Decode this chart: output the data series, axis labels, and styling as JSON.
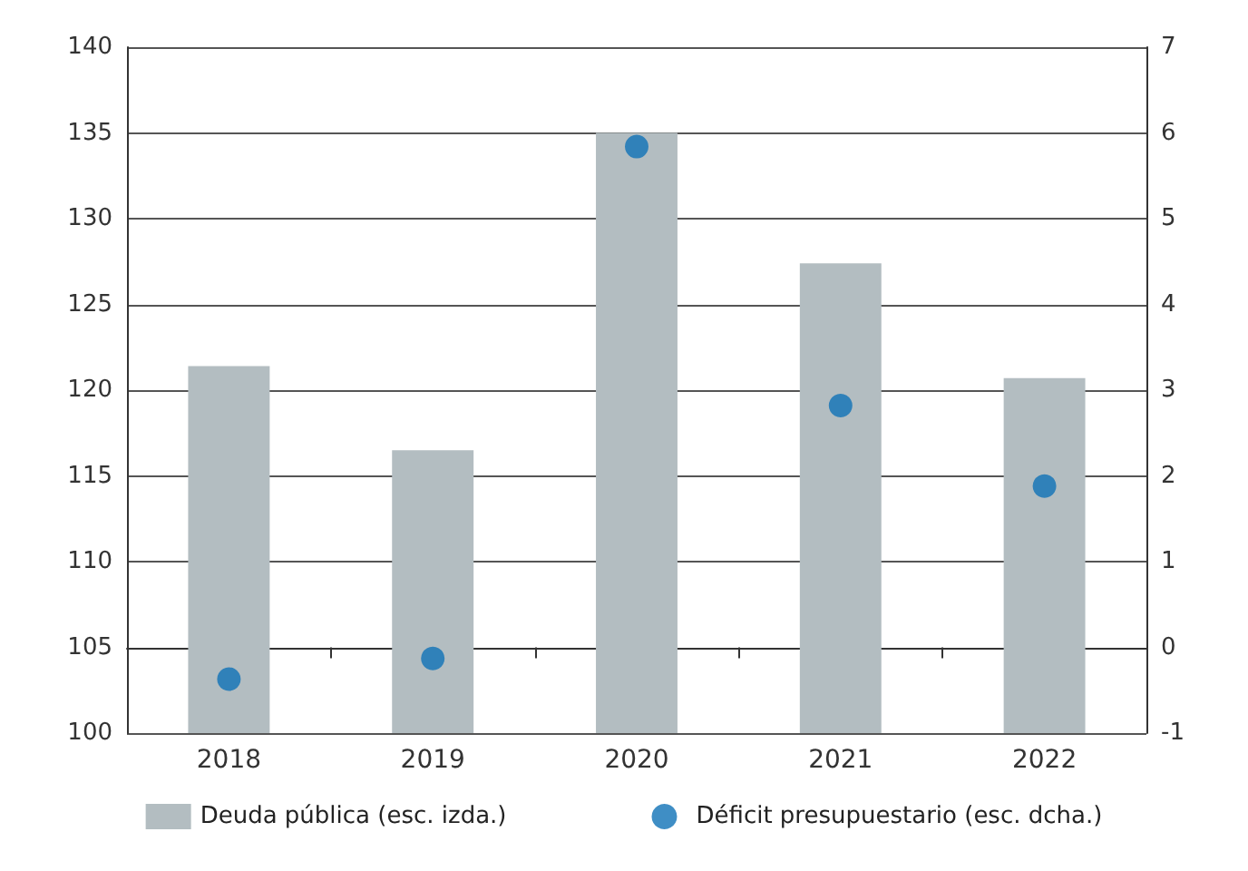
{
  "chart_data": {
    "type": "bar",
    "categories": [
      "2018",
      "2019",
      "2020",
      "2021",
      "2022"
    ],
    "series": [
      {
        "name": "Deuda pública (esc. izda.)",
        "color": "#b3bdc1",
        "values": [
          121.4,
          116.5,
          135.0,
          127.4,
          120.7
        ]
      },
      {
        "name": "Déficit presupuestario (esc. dcha.)",
        "type": "scatter",
        "axis": "y2",
        "color": "#0f72b7",
        "values": [
          -0.37,
          -0.13,
          5.84,
          2.82,
          1.88
        ]
      }
    ],
    "ylim": [
      100,
      140
    ],
    "yticks": [
      100,
      105,
      110,
      115,
      120,
      125,
      130,
      135,
      140
    ],
    "y2lim": [
      -1,
      7
    ],
    "y2ticks": [
      -1,
      0,
      1,
      2,
      3,
      4,
      5,
      6,
      7
    ],
    "grid": "y",
    "legend": "bottom",
    "marker": "circle"
  }
}
